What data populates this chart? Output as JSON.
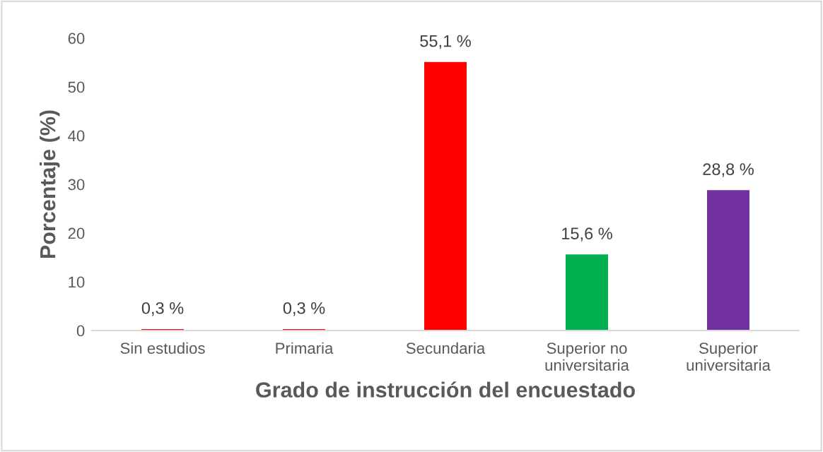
{
  "chart_data": {
    "type": "bar",
    "xlabel": "Grado de instrucción del encuestado",
    "ylabel": "Porcentaje (%)",
    "categories": [
      "Sin estudios",
      "Primaria",
      "Secundaria",
      "Superior no\nuniversitaria",
      "Superior\nuniversitaria"
    ],
    "values": [
      0.3,
      0.3,
      55.1,
      15.6,
      28.8
    ],
    "colors": [
      "#ff0000",
      "#ff0000",
      "#ff0000",
      "#00b050",
      "#7030a0"
    ],
    "value_labels": [
      "0,3 %",
      "0,3 %",
      "55,1 %",
      "15,6 %",
      "28,8 %"
    ],
    "ylim": [
      0,
      60
    ],
    "yticks": [
      0,
      10,
      20,
      30,
      40,
      50,
      60
    ],
    "grid": false,
    "legend": false
  }
}
